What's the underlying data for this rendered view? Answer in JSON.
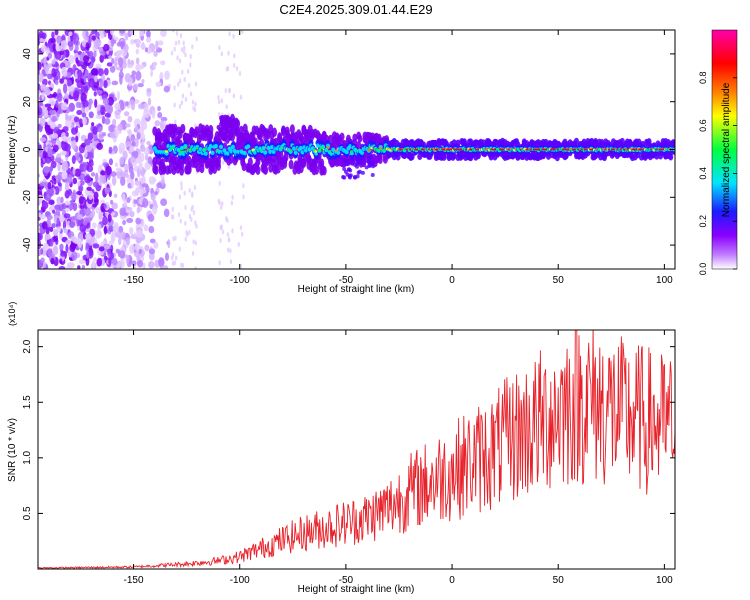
{
  "title": "C2E4.2025.309.01.44.E29",
  "chart_data": [
    {
      "type": "heatmap",
      "name": "spectrogram",
      "xlabel": "Height of straight line (km)",
      "ylabel": "Frequency (Hz)",
      "xlim": [
        -195,
        105
      ],
      "ylim": [
        -50,
        50
      ],
      "xticks": [
        -150,
        -100,
        -50,
        0,
        50,
        100
      ],
      "yticks": [
        -40,
        -20,
        0,
        20,
        40
      ],
      "xtick_labels": [
        "-150",
        "-100",
        "-50",
        "0",
        "50",
        "100"
      ],
      "ytick_labels": [
        "-40",
        "-20",
        "0",
        "20",
        "40"
      ],
      "colorbar": {
        "label": "Normalized spectral amplitude",
        "range": [
          0,
          1
        ],
        "ticks": [
          0.0,
          0.2,
          0.4,
          0.6,
          0.8
        ],
        "tick_labels": [
          "0.0",
          "0.2",
          "0.4",
          "0.6",
          "0.8"
        ],
        "colors": [
          "#ffffff",
          "#8a00ff",
          "#1b1bff",
          "#00e5ff",
          "#00ff40",
          "#ffff00",
          "#ff8000",
          "#ff0000",
          "#ff00aa"
        ]
      },
      "description_points": {
        "noise_region_x": [
          -195,
          -135
        ],
        "signal_band_center_hz": 0,
        "signal_start_x": -140,
        "spur_at_x": -107
      }
    },
    {
      "type": "line",
      "name": "snr",
      "xlabel": "Height of straight line (km)",
      "ylabel": "SNR (10 * v/v)",
      "y_multiplier": "(x10⁴)",
      "xlim": [
        -195,
        105
      ],
      "ylim": [
        0,
        2.15
      ],
      "xticks": [
        -150,
        -100,
        -50,
        0,
        50,
        100
      ],
      "yticks": [
        0.5,
        1.0,
        1.5,
        2.0
      ],
      "xtick_labels": [
        "-150",
        "-100",
        "-50",
        "0",
        "50",
        "100"
      ],
      "ytick_labels": [
        "0.5",
        "1.0",
        "1.5",
        "2.0"
      ],
      "color": "#e8222a",
      "envelope_x": [
        -195,
        -150,
        -125,
        -110,
        -100,
        -90,
        -80,
        -70,
        -60,
        -50,
        -40,
        -30,
        -20,
        -10,
        0,
        10,
        20,
        30,
        40,
        50,
        60,
        70,
        80,
        90,
        100,
        105
      ],
      "envelope_y": [
        0.01,
        0.02,
        0.05,
        0.08,
        0.12,
        0.2,
        0.28,
        0.35,
        0.4,
        0.45,
        0.5,
        0.6,
        0.75,
        0.85,
        0.95,
        1.05,
        1.15,
        1.3,
        1.4,
        1.55,
        1.65,
        1.6,
        1.5,
        1.45,
        1.4,
        1.4
      ]
    }
  ]
}
